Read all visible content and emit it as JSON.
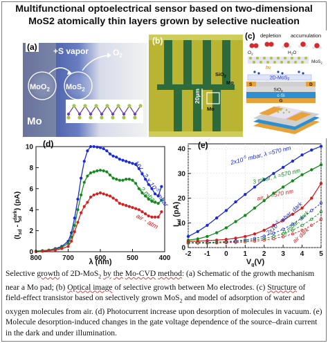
{
  "title": {
    "line1": "Multifunctional optoelectrical sensor based on two-dimensional",
    "line2": "MoS2 atomically thin layers grown by selective nucleation"
  },
  "panel_a": {
    "label": "(a)",
    "vapor": "+S vapor",
    "o2": "O",
    "o2_sub": "2",
    "moo2": "MoO",
    "moo2_sub": "2",
    "mos2": "MoS",
    "mos2_sub": "2",
    "mo": "Mo"
  },
  "panel_b": {
    "label": "(b)",
    "scale": "20µm",
    "sio2": "SiO",
    "sio2_sub": "2",
    "mo1": "Mo",
    "mo2": "Mo"
  },
  "panel_c": {
    "label": "(c)",
    "depletion": "depletion",
    "accumulation": "accumulation",
    "hv": "hν",
    "mos2_layer": "2D-MoS",
    "mos2_small": "MoS",
    "sio2": "SiO",
    "s": "S",
    "d": "D",
    "csi": "c-Si",
    "g": "G",
    "o2": "O",
    "h2o": "H",
    "h2o_tail": "O"
  },
  "chart_data": [
    {
      "type": "line",
      "panel": "(d)",
      "xlabel": "λ (nm)",
      "ylabel": "(I_sd - I_sd^dark) (pA)",
      "xlim": [
        800,
        400
      ],
      "ylim": [
        0,
        10
      ],
      "xticks": [
        800,
        700,
        600,
        500,
        400
      ],
      "yticks": [
        0,
        2,
        4,
        6,
        8,
        10
      ],
      "series": [
        {
          "name": "HV - 2 x 10^-5 mbar",
          "color": "#1a2bd8",
          "x": [
            800,
            780,
            760,
            740,
            720,
            700,
            690,
            680,
            670,
            660,
            650,
            640,
            630,
            620,
            610,
            600,
            590,
            580,
            570,
            560,
            550,
            540,
            530,
            520,
            510,
            500,
            490,
            480,
            470,
            460,
            450,
            440,
            430,
            420,
            410
          ],
          "y": [
            0.05,
            0.1,
            0.15,
            0.3,
            0.5,
            1.0,
            1.8,
            3.2,
            5.0,
            7.0,
            8.6,
            9.6,
            10.0,
            10.0,
            9.95,
            9.9,
            9.8,
            9.6,
            9.3,
            9.1,
            9.0,
            8.8,
            8.7,
            8.6,
            8.5,
            8.4,
            8.3,
            7.9,
            7.4,
            6.9,
            6.4,
            6.0,
            5.5,
            5.3,
            6.2
          ]
        },
        {
          "name": "2 mbar",
          "color": "#138a1d",
          "x": [
            800,
            780,
            760,
            740,
            720,
            700,
            690,
            680,
            670,
            660,
            650,
            640,
            630,
            620,
            610,
            600,
            590,
            580,
            570,
            560,
            550,
            540,
            530,
            520,
            510,
            500,
            490,
            480,
            470,
            460,
            450,
            440,
            430,
            420,
            410
          ],
          "y": [
            0.05,
            0.1,
            0.15,
            0.25,
            0.4,
            0.8,
            1.4,
            2.5,
            4.0,
            5.4,
            6.6,
            7.2,
            7.5,
            7.6,
            7.7,
            7.75,
            7.7,
            7.6,
            7.3,
            7.0,
            6.9,
            6.8,
            6.8,
            6.9,
            6.9,
            6.8,
            6.5,
            6.0,
            5.6,
            5.3,
            5.0,
            4.8,
            4.7,
            4.6,
            4.9
          ]
        },
        {
          "name": "air - atm",
          "color": "#d61f1f",
          "x": [
            800,
            780,
            760,
            740,
            720,
            700,
            690,
            680,
            670,
            660,
            650,
            640,
            630,
            620,
            610,
            600,
            590,
            580,
            570,
            560,
            550,
            540,
            530,
            520,
            510,
            500,
            490,
            480,
            470,
            460,
            450,
            440,
            430,
            420,
            410
          ],
          "y": [
            0.0,
            0.05,
            0.1,
            0.15,
            0.3,
            0.5,
            1.0,
            1.9,
            2.8,
            3.7,
            4.3,
            4.7,
            5.2,
            5.4,
            5.5,
            5.6,
            5.5,
            5.4,
            5.3,
            5.1,
            4.9,
            4.6,
            4.5,
            4.4,
            4.3,
            4.2,
            4.1,
            4.0,
            3.8,
            3.6,
            3.4,
            3.3,
            3.3,
            3.3,
            3.8
          ]
        }
      ]
    },
    {
      "type": "line",
      "panel": "(e)",
      "xlabel": "V_g(V)",
      "ylabel": "I_sd (pA)",
      "xlim": [
        -2,
        5
      ],
      "ylim": [
        0,
        42
      ],
      "xticks": [
        -2,
        -1,
        0,
        1,
        2,
        3,
        4,
        5
      ],
      "yticks": [
        0,
        10,
        20,
        30,
        40
      ],
      "series": [
        {
          "name": "2x10^-5 mbar, λ =570 nm",
          "color": "#1a2bd8",
          "x": [
            -2,
            -1.5,
            -1,
            -0.5,
            0,
            0.5,
            1,
            1.5,
            2,
            2.5,
            3,
            3.5,
            4,
            4.5,
            5
          ],
          "y": [
            4.5,
            6.5,
            9.0,
            12.0,
            15.0,
            18.5,
            21.5,
            24.5,
            27.5,
            30.0,
            32.5,
            35.0,
            37.5,
            39.5,
            41.0
          ]
        },
        {
          "name": "3 mbar, λ =570 nm",
          "color": "#138a1d",
          "x": [
            -2,
            -1.5,
            -1,
            -0.5,
            0,
            0.5,
            1,
            1.5,
            2,
            2.5,
            3,
            3.5,
            4,
            4.5,
            5
          ],
          "y": [
            3.0,
            3.5,
            4.5,
            6.0,
            8.0,
            10.5,
            13.0,
            16.0,
            19.0,
            22.0,
            24.5,
            27.0,
            29.5,
            31.5,
            33.5
          ]
        },
        {
          "name": "air, λ =570 nm",
          "color": "#d61f1f",
          "x": [
            -2,
            -1.5,
            -1,
            -0.5,
            0,
            0.5,
            1,
            1.5,
            2,
            2.5,
            3,
            3.5,
            4,
            4.5,
            5
          ],
          "y": [
            2.5,
            2.6,
            2.8,
            3.0,
            3.3,
            3.8,
            4.5,
            5.5,
            7.0,
            9.0,
            11.0,
            13.5,
            16.0,
            20.0,
            26.0
          ]
        },
        {
          "name": "2x10^-5 mbar, dark",
          "color": "#1a2bd8",
          "x": [
            -2,
            -1.5,
            -1,
            -0.5,
            0,
            0.5,
            1,
            1.5,
            2,
            2.5,
            3,
            3.5,
            4,
            4.5,
            5
          ],
          "y": [
            2.0,
            2.0,
            2.1,
            2.2,
            2.4,
            2.7,
            3.1,
            3.7,
            4.6,
            5.8,
            7.4,
            9.5,
            12.0,
            15.0,
            18.0
          ]
        },
        {
          "name": "3 mbar, dark",
          "color": "#138a1d",
          "x": [
            -2,
            -1.5,
            -1,
            -0.5,
            0,
            0.5,
            1,
            1.5,
            2,
            2.5,
            3,
            3.5,
            4,
            4.5,
            5
          ],
          "y": [
            2.0,
            2.0,
            2.0,
            2.1,
            2.2,
            2.4,
            2.7,
            3.1,
            3.7,
            4.5,
            5.6,
            7.0,
            9.0,
            11.5,
            14.5
          ]
        },
        {
          "name": "air dark",
          "color": "#d61f1f",
          "x": [
            -2,
            -1.5,
            -1,
            -0.5,
            0,
            0.5,
            1,
            1.5,
            2,
            2.5,
            3,
            3.5,
            4,
            4.5,
            5
          ],
          "y": [
            1.8,
            1.8,
            1.8,
            1.9,
            2.0,
            2.1,
            2.3,
            2.6,
            3.0,
            3.6,
            4.4,
            5.5,
            7.0,
            9.0,
            11.5
          ]
        }
      ],
      "annotations": [
        "2x10^-5 mbar, λ =570 nm",
        "3 mbar, λ =570 nm",
        "air, λ =570 nm",
        "2x10^-5 mbar, dark",
        "3 mbar, dark",
        "air dark"
      ]
    }
  ],
  "chart_text": {
    "d_label": "(d)",
    "e_label": "(e)",
    "d_hv": "HV - 2 x 10",
    "d_hv_exp": "-5",
    "d_hv_unit": " mbar",
    "d_2mbar": "2 mbar",
    "d_air": "air - atm",
    "e_a1": "2x10",
    "e_a1_exp": "-5",
    "e_a1_tail": " mbar, λ =570 nm",
    "e_a2": "3 mbar, λ =570 nm",
    "e_a3": "air, λ =570 nm",
    "e_a4": "2x10",
    "e_a4_exp": "-5",
    "e_a4_tail": " mbar, dark",
    "e_a5": "3 mbar, dark",
    "e_a6": "air dark",
    "d_xlabel": "λ (nm)",
    "e_xlabel_main": "V",
    "e_xlabel_sub": "g",
    "e_xlabel_tail": "(V)",
    "e_ylabel_main": "I",
    "e_ylabel_sub": "sd",
    "e_ylabel_tail": " (pA)",
    "d_ylabel_a": "(I",
    "d_ylabel_sd": "sd",
    "d_ylabel_mid": " - I",
    "d_ylabel_dark": "dark",
    "d_ylabel_sd2": "sd",
    "d_ylabel_tail": ") (pA)"
  },
  "caption": {
    "p1": "Selective ",
    "u1": "growth",
    "p2": " of 2D-MoS",
    "p2_sub": "2",
    "p3": " ",
    "u2": "by",
    "p4": " ",
    "u3": "the",
    "p5": " ",
    "u4": "Mo-CVD",
    "p6": " ",
    "u5": "method",
    "p7": ": (a) Schematic of the growth mechanism near a Mo pad; (b) ",
    "u6": "Optical image",
    "p8": " of selective growth between Mo electrodes. (c) ",
    "u7": "Structure",
    "p9": " of field-effect transistor based on selectively grown MoS",
    "p9_sub": "2",
    "p10": " and model of adsorption of water and oxygen molecules from air. (d) Photocurrent increase upon desorption of molecules in vacuum. (e) Molecule desorption-induced changes in the gate voltage dependence of the source–drain current in the dark and under illumination."
  }
}
